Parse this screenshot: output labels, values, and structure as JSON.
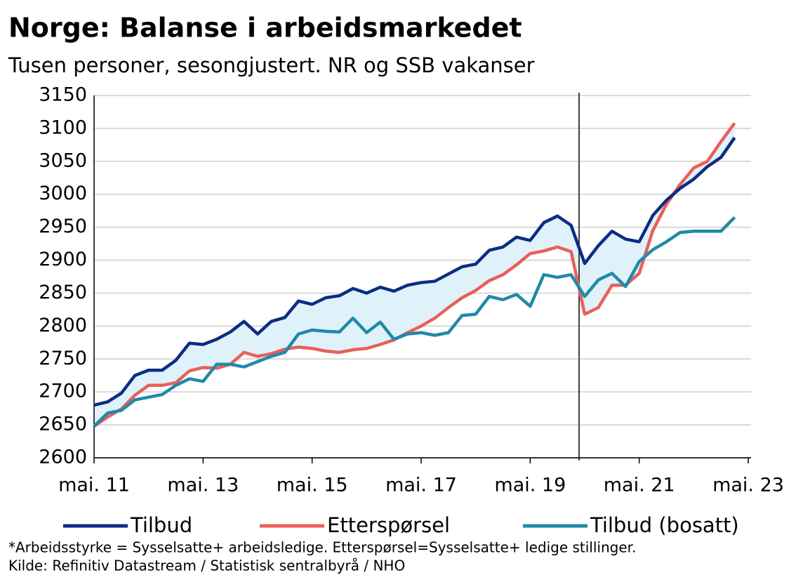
{
  "chart_data": {
    "type": "line",
    "title": "Norge:  Balanse i arbeidsmarkedet",
    "subtitle": "Tusen personer, sesongjustert. NR og SSB vakanser",
    "notes": [
      "*Arbeidsstyrke = Sysselsatte+ arbeidsledige.  Etterspørsel=Sysselsatte+ ledige  stillinger.",
      "Kilde:  Refinitiv  Datastream  /  Statistisk  sentralbyrå  /  NHO"
    ],
    "categories": [
      "mai. 11",
      null,
      null,
      null,
      null,
      null,
      null,
      null,
      "mai. 13",
      null,
      null,
      null,
      null,
      null,
      null,
      null,
      "mai. 15",
      null,
      null,
      null,
      null,
      null,
      null,
      null,
      "mai. 17",
      null,
      null,
      null,
      null,
      null,
      null,
      null,
      "mai. 19",
      null,
      null,
      null,
      null,
      null,
      null,
      null,
      "mai. 21",
      null,
      null,
      null,
      null,
      null,
      null,
      null,
      "mai. 23"
    ],
    "series": [
      {
        "name": "Tilbud",
        "color": "#0b2d82",
        "values": [
          2680,
          2685,
          2698,
          2725,
          2733,
          2733,
          2748,
          2774,
          2772,
          2780,
          2791,
          2807,
          2788,
          2807,
          2813,
          2838,
          2833,
          2843,
          2846,
          2857,
          2850,
          2859,
          2853,
          2862,
          2866,
          2868,
          2879,
          2890,
          2894,
          2915,
          2920,
          2935,
          2930,
          2957,
          2967,
          2953,
          2895,
          2922,
          2944,
          2932,
          2928,
          2968,
          2991,
          3009,
          3023,
          3042,
          3056,
          3086,
          null
        ]
      },
      {
        "name": "Etterspørsel",
        "color": "#e8605a",
        "values": [
          2648,
          2662,
          2674,
          2695,
          2710,
          2710,
          2714,
          2732,
          2737,
          2736,
          2742,
          2760,
          2754,
          2758,
          2765,
          2768,
          2766,
          2762,
          2760,
          2764,
          2766,
          2772,
          2779,
          2790,
          2800,
          2812,
          2828,
          2843,
          2854,
          2869,
          2878,
          2893,
          2910,
          2914,
          2920,
          2913,
          2818,
          2828,
          2862,
          2862,
          2880,
          2945,
          2985,
          3015,
          3040,
          3050,
          3080,
          3108,
          null
        ]
      },
      {
        "name": "Tilbud (bosatt)",
        "color": "#2189a8",
        "values": [
          2648,
          2668,
          2672,
          2688,
          2692,
          2696,
          2710,
          2720,
          2716,
          2742,
          2742,
          2738,
          2746,
          2754,
          2760,
          2788,
          2794,
          2792,
          2791,
          2812,
          2790,
          2806,
          2780,
          2788,
          2790,
          2786,
          2790,
          2816,
          2818,
          2845,
          2840,
          2848,
          2830,
          2878,
          2874,
          2878,
          2845,
          2870,
          2880,
          2860,
          2898,
          2916,
          2928,
          2942,
          2944,
          2944,
          2944,
          2965,
          null
        ]
      }
    ],
    "band_color": "#dff2fa",
    "ylim": [
      2600,
      3150
    ],
    "yticks": [
      2600,
      2650,
      2700,
      2750,
      2800,
      2850,
      2900,
      2950,
      3000,
      3050,
      3100,
      3150
    ],
    "grid": true
  }
}
